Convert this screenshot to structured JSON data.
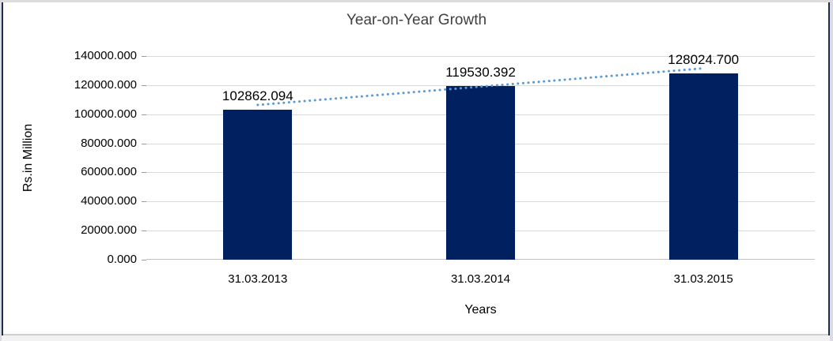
{
  "chart_data": {
    "type": "bar",
    "title": "Year-on-Year Growth",
    "xlabel": "Years",
    "ylabel": "Rs.in Million",
    "categories": [
      "31.03.2013",
      "31.03.2014",
      "31.03.2015"
    ],
    "values": [
      102862.094,
      119530.392,
      128024.7
    ],
    "data_labels": [
      "102862.094",
      "119530.392",
      "128024.700"
    ],
    "ylim": [
      0,
      140000
    ],
    "ytick_step": 20000,
    "ytick_labels": [
      "0.000",
      "20000.000",
      "40000.000",
      "60000.000",
      "80000.000",
      "100000.000",
      "120000.000",
      "140000.000"
    ],
    "grid": true,
    "legend": false,
    "bar_color": "#002060",
    "gridline_color": "#d9d9d9",
    "title_color": "#404040",
    "text_color": "#000000",
    "trendline": {
      "type": "linear",
      "style": "dotted",
      "color": "#5b9bd5"
    }
  }
}
